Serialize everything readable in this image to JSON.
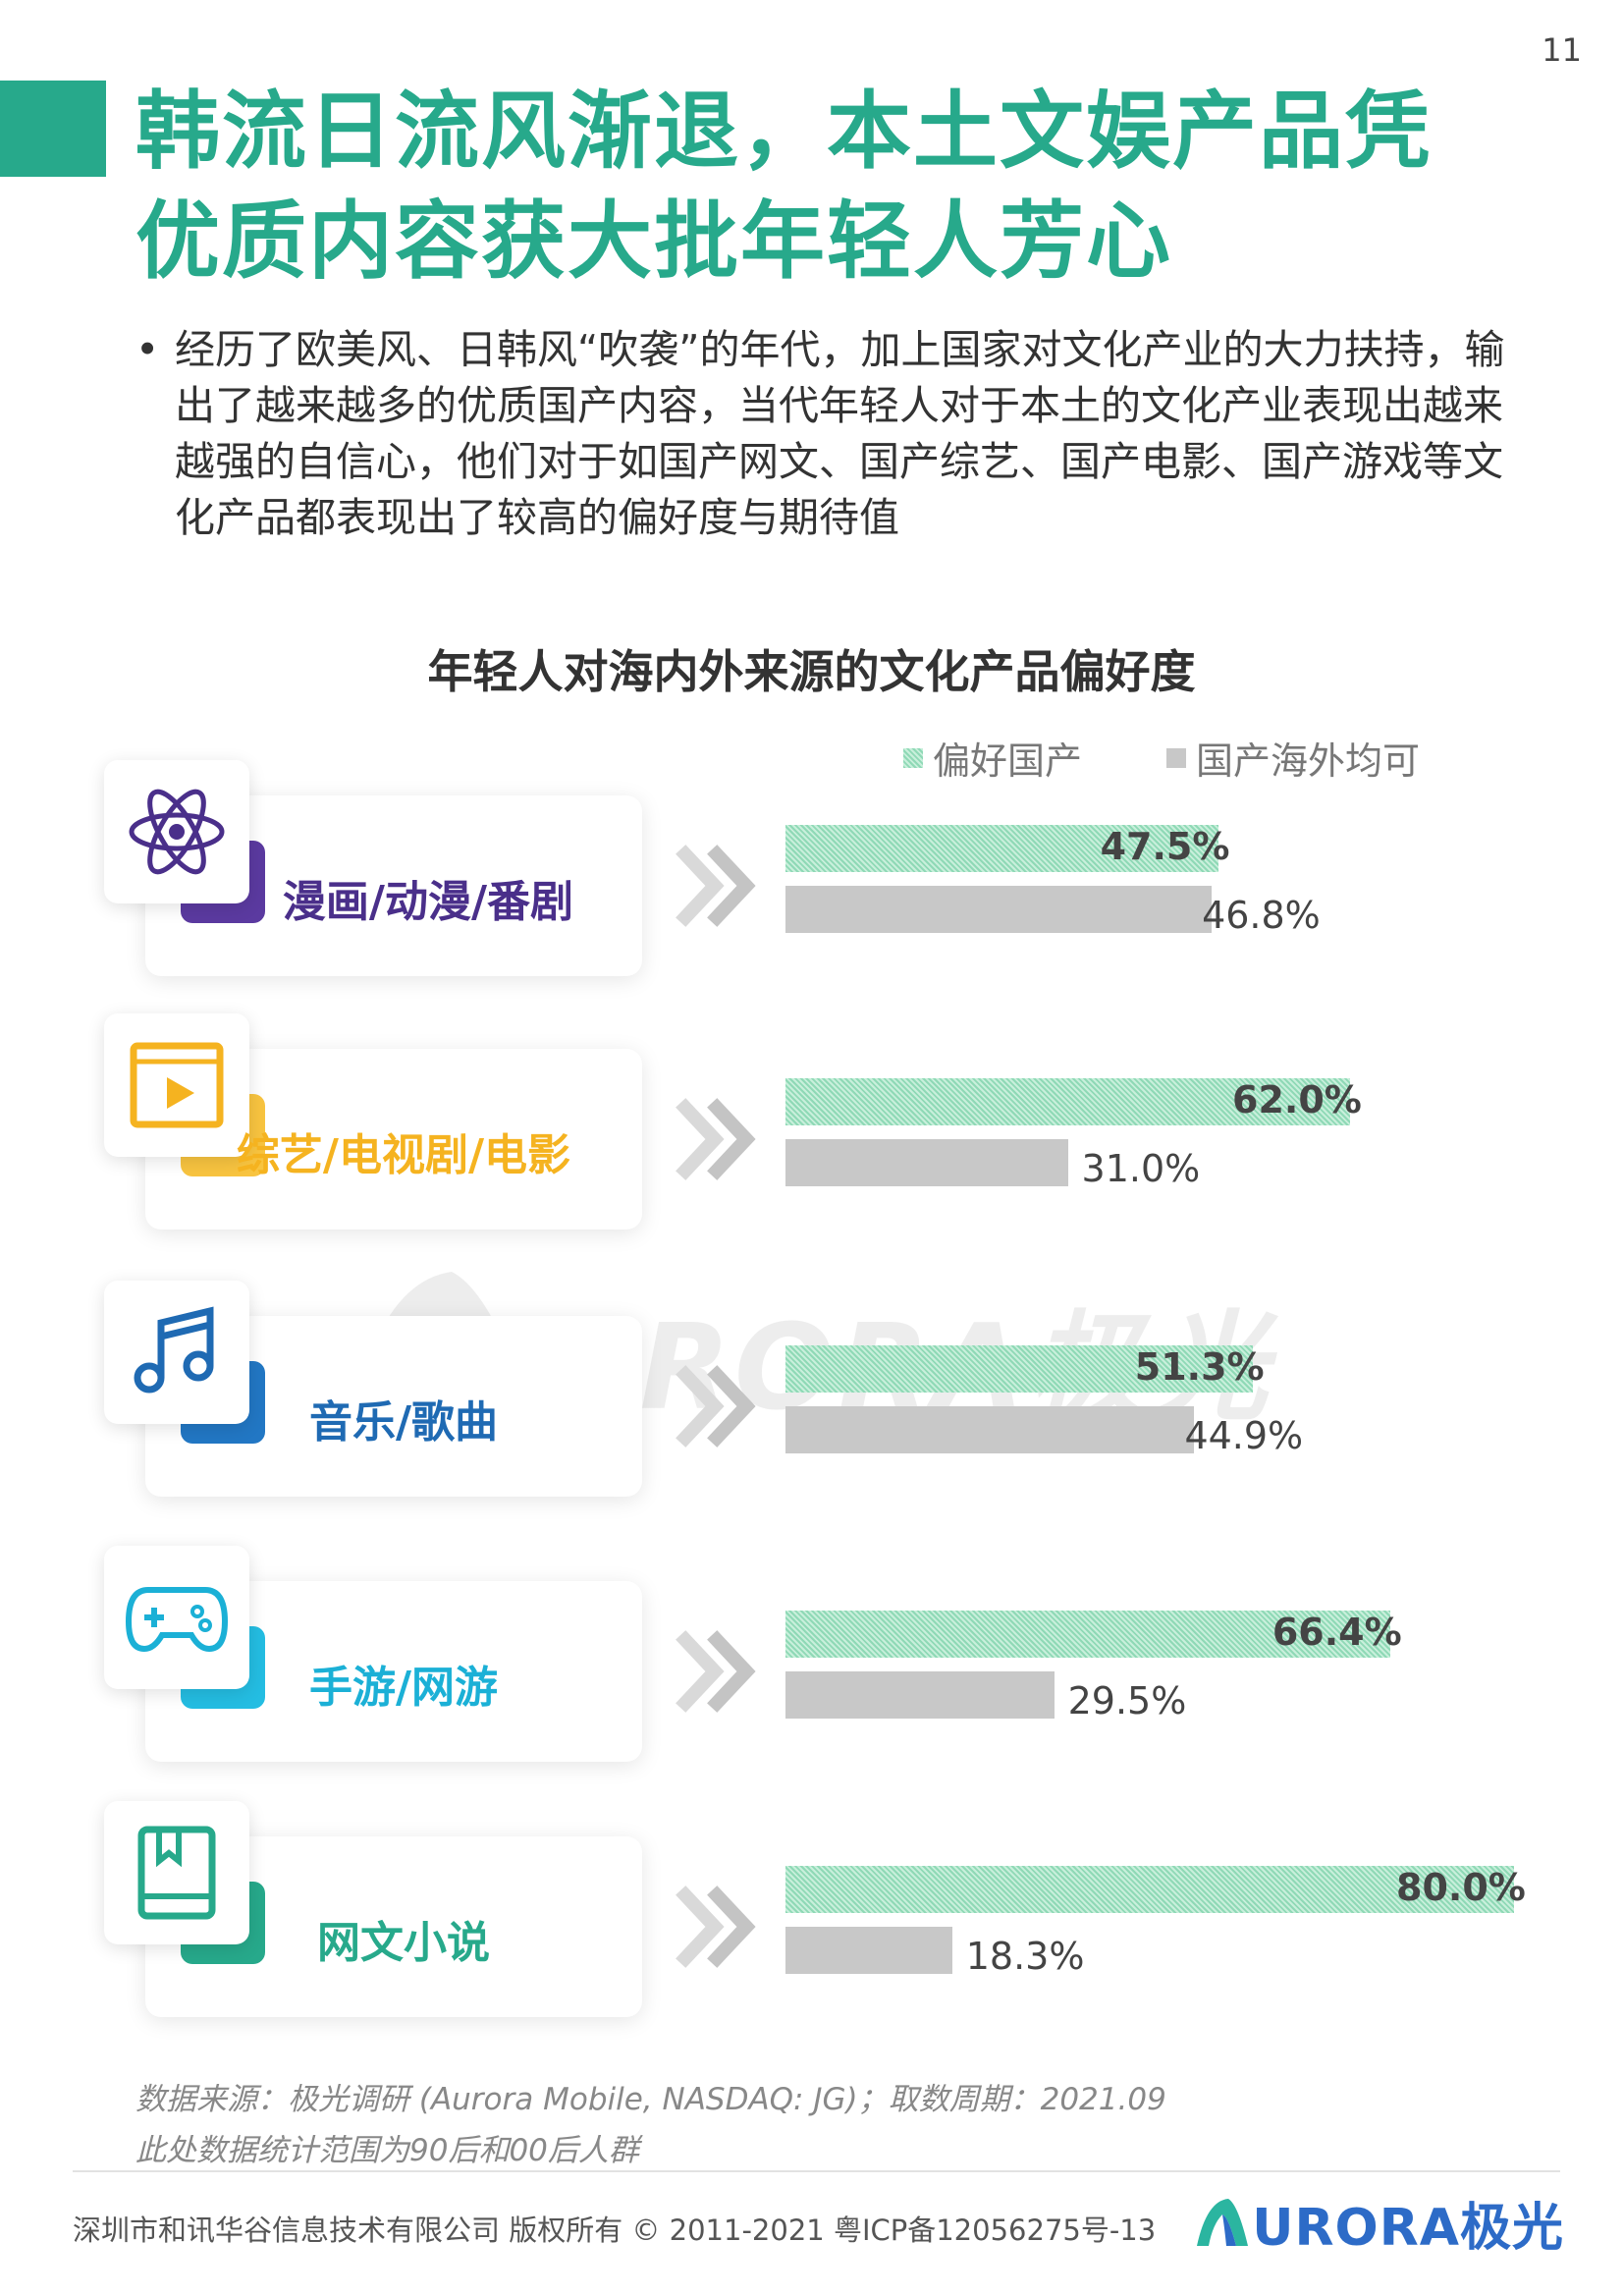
{
  "page_number": "11",
  "title": {
    "line1": "韩流日流风渐退，本土文娱产品凭",
    "line2": "优质内容获大批年轻人芳心"
  },
  "intro": {
    "bullet": "•",
    "text": "经历了欧美风、日韩风“吹袭”的年代，加上国家对文化产业的大力扶持，输出了越来越多的优质国产内容，当代年轻人对于本土的文化产业表现出越来越强的自信心，他们对于如国产网文、国产综艺、国产电影、国产游戏等文化产品都表现出了较高的偏好度与期待值"
  },
  "colors": {
    "brand_green": "#27a98b",
    "pref_bar": "#a6e2c6",
    "both_bar": "#c8c8c8"
  },
  "chart_data": {
    "type": "bar",
    "orientation": "horizontal",
    "title": "年轻人对海内外来源的文化产品偏好度",
    "legend_position": "top-right",
    "categories": [
      "漫画/动漫/番剧",
      "综艺/电视剧/电影",
      "音乐/歌曲",
      "手游/网游",
      "网文小说"
    ],
    "series": [
      {
        "name": "偏好国产",
        "values": [
          47.5,
          62.0,
          51.3,
          66.4,
          80.0
        ],
        "labels": [
          "47.5%",
          "62.0%",
          "51.3%",
          "66.4%",
          "80.0%"
        ]
      },
      {
        "name": "国产海外均可",
        "values": [
          46.8,
          31.0,
          44.9,
          29.5,
          18.3
        ],
        "labels": [
          "46.8%",
          "31.0%",
          "44.9%",
          "29.5%",
          "18.3%"
        ]
      }
    ],
    "xlim": [
      0,
      80
    ],
    "grid": false
  },
  "rows": [
    {
      "icon": "atom-icon",
      "color": "#4a2f8a",
      "back": "#5b3aa0"
    },
    {
      "icon": "video-play-icon",
      "color": "#f5b320",
      "back": "#f8c440"
    },
    {
      "icon": "music-note-icon",
      "color": "#1f6ab3",
      "back": "#2277c4"
    },
    {
      "icon": "gamepad-icon",
      "color": "#1bb0d6",
      "back": "#24bde2"
    },
    {
      "icon": "book-icon",
      "color": "#27a98b",
      "back": "#27a98b"
    }
  ],
  "watermark": {
    "text": "URORA极光"
  },
  "source": {
    "line1": "数据来源：极光调研 (Aurora Mobile, NASDAQ: JG)；取数周期：2021.09",
    "line2": "此处数据统计范围为90后和00后人群"
  },
  "footer": {
    "copyright": "深圳市和讯华谷信息技术有限公司 版权所有 © 2011-2021 粤ICP备12056275号-13",
    "brand": "URORA极光"
  }
}
